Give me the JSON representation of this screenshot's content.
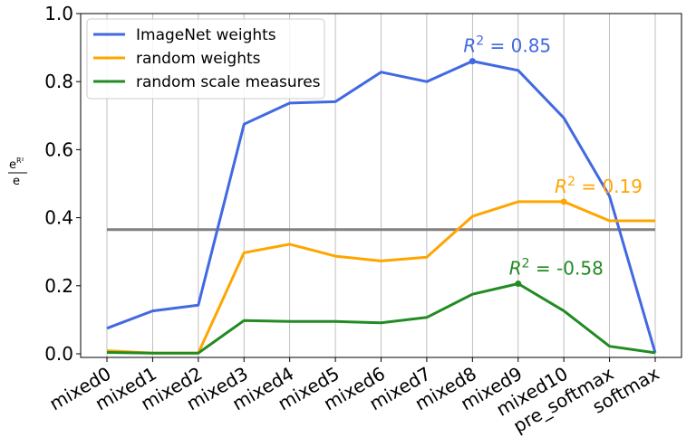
{
  "chart_data": {
    "type": "line",
    "title": "",
    "xlabel": "",
    "ylabel_fraction": {
      "numerator_base": "e",
      "numerator_exp": "R²",
      "denominator": "e"
    },
    "categories": [
      "mixed0",
      "mixed1",
      "mixed2",
      "mixed3",
      "mixed4",
      "mixed5",
      "mixed6",
      "mixed7",
      "mixed8",
      "mixed9",
      "mixed10",
      "pre_softmax",
      "softmax"
    ],
    "ylim": [
      0,
      1.0
    ],
    "yticks": [
      "0.0",
      "0.2",
      "0.4",
      "0.6",
      "0.8",
      "1.0"
    ],
    "ytick_values": [
      0.0,
      0.2,
      0.4,
      0.6,
      0.8,
      1.0
    ],
    "grid": "vertical",
    "legend_position": "top-left",
    "hline": {
      "value": 0.365,
      "color": "#808080"
    },
    "series": [
      {
        "name": "ImageNet weights",
        "color": "#4169e1",
        "values": [
          0.075,
          0.126,
          0.143,
          0.675,
          0.737,
          0.741,
          0.828,
          0.8,
          0.86,
          0.833,
          0.693,
          0.463,
          0.003
        ],
        "marker_index": 8,
        "annotation": {
          "prefix": "R",
          "sup": "2",
          "text": " = 0.85"
        }
      },
      {
        "name": "random weights",
        "color": "#ffa500",
        "values": [
          0.009,
          0.002,
          0.002,
          0.297,
          0.322,
          0.287,
          0.273,
          0.284,
          0.404,
          0.447,
          0.447,
          0.391,
          0.391
        ],
        "marker_index": 10,
        "annotation": {
          "prefix": "R",
          "sup": "2",
          "text": " = 0.19"
        }
      },
      {
        "name": "random scale measures",
        "color": "#228b22",
        "values": [
          0.004,
          0.002,
          0.002,
          0.098,
          0.095,
          0.095,
          0.091,
          0.107,
          0.175,
          0.206,
          0.126,
          0.022,
          0.003
        ],
        "marker_index": 9,
        "annotation": {
          "prefix": "R",
          "sup": "2",
          "text": " = -0.58"
        }
      }
    ]
  }
}
